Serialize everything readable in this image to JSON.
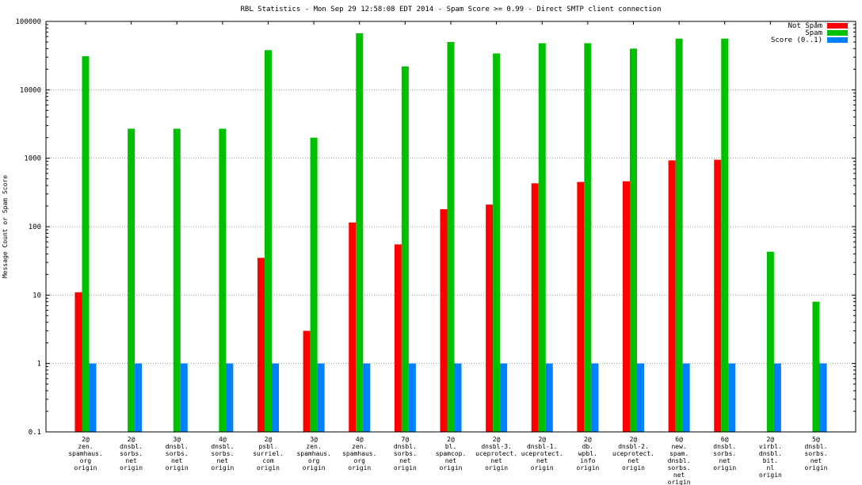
{
  "chart_data": {
    "type": "bar",
    "title": "RBL Statistics - Mon Sep 29 12:58:08 EDT 2014 - Spam Score >= 0.99 - Direct SMTP client connection",
    "xlabel": "",
    "ylabel": "Message Count or Spam Score",
    "yscale": "log",
    "ylim": [
      0.1,
      100000
    ],
    "yticks": [
      {
        "v": 0.1,
        "label": "0.1"
      },
      {
        "v": 1,
        "label": "1"
      },
      {
        "v": 10,
        "label": "10"
      },
      {
        "v": 100,
        "label": "100"
      },
      {
        "v": 1000,
        "label": "1000"
      },
      {
        "v": 10000,
        "label": "10000"
      },
      {
        "v": 100000,
        "label": "100000"
      }
    ],
    "grid": "horizontal-dotted",
    "legend_position": "top-right",
    "categories": [
      [
        "2@",
        "zen.",
        "spamhaus.",
        "org",
        "origin"
      ],
      [
        "2@",
        "dnsbl.",
        "sorbs.",
        "net",
        "origin"
      ],
      [
        "3@",
        "dnsbl.",
        "sorbs.",
        "net",
        "origin"
      ],
      [
        "4@",
        "dnsbl.",
        "sorbs.",
        "net",
        "origin"
      ],
      [
        "2@",
        "psbl.",
        "surriel.",
        "com",
        "origin"
      ],
      [
        "3@",
        "zen.",
        "spamhaus.",
        "org",
        "origin"
      ],
      [
        "4@",
        "zen.",
        "spamhaus.",
        "org",
        "origin"
      ],
      [
        "7@",
        "dnsbl.",
        "sorbs.",
        "net",
        "origin"
      ],
      [
        "2@",
        "bl.",
        "spamcop.",
        "net",
        "origin"
      ],
      [
        "2@",
        "dnsbl-3.",
        "uceprotect.",
        "net",
        "origin"
      ],
      [
        "2@",
        "dnsbl-1.",
        "uceprotect.",
        "net",
        "origin"
      ],
      [
        "2@",
        "db.",
        "wpbl.",
        "info",
        "origin"
      ],
      [
        "2@",
        "dnsbl-2.",
        "uceprotect.",
        "net",
        "origin"
      ],
      [
        "6@",
        "new.",
        "spam.",
        "dnsbl.",
        "sorbs.",
        "net",
        "origin"
      ],
      [
        "6@",
        "dnsbl.",
        "sorbs.",
        "net",
        "origin"
      ],
      [
        "2@",
        "virbl.",
        "dnsbl.",
        "bit.",
        "nl",
        "origin"
      ],
      [
        "5@",
        "dnsbl.",
        "sorbs.",
        "net",
        "origin"
      ]
    ],
    "series": [
      {
        "name": "Not Spam",
        "color": "#ff0000",
        "values": [
          11,
          null,
          null,
          null,
          35,
          3,
          115,
          55,
          180,
          210,
          430,
          450,
          460,
          930,
          950,
          null,
          null
        ]
      },
      {
        "name": "Spam",
        "color": "#00c000",
        "values": [
          31000,
          2700,
          2700,
          2700,
          38000,
          2000,
          67000,
          22000,
          50000,
          34000,
          48000,
          48000,
          40000,
          56000,
          56000,
          43,
          8
        ]
      },
      {
        "name": "Score (0..1)",
        "color": "#0080ff",
        "values": [
          1,
          1,
          1,
          1,
          1,
          1,
          1,
          1,
          1,
          1,
          1,
          1,
          1,
          1,
          1,
          1,
          1
        ]
      }
    ]
  },
  "colors": {
    "axis": "#000000",
    "grid": "#9a9a9a",
    "background": "#ffffff"
  }
}
